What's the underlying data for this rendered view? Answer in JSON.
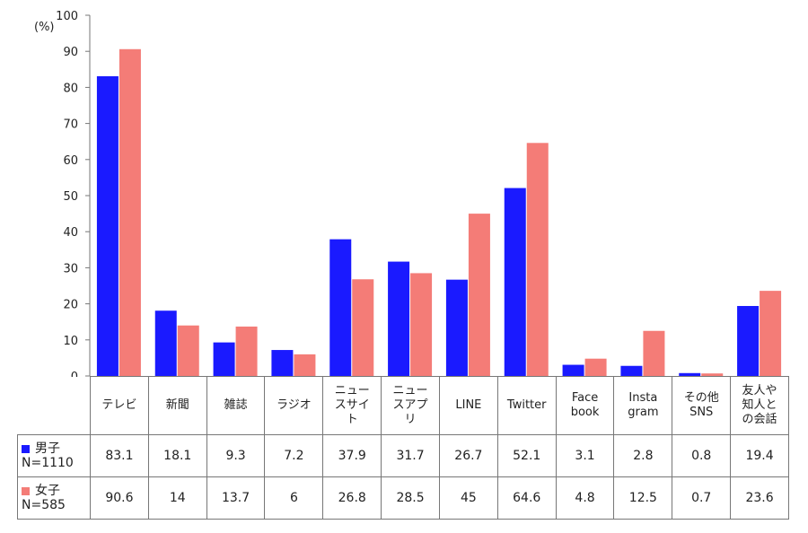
{
  "chart_data": {
    "type": "bar",
    "ylabel": "(%)",
    "ylim": [
      0,
      100
    ],
    "yticks": [
      0,
      10,
      20,
      30,
      40,
      50,
      60,
      70,
      80,
      90,
      100
    ],
    "grid": false,
    "categories": [
      "テレビ",
      "新聞",
      "雑誌",
      "ラジオ",
      "ニュー\nスサイ\nト",
      "ニュー\nスアプ\nリ",
      "LINE",
      "Twitter",
      "Face\nbook",
      "Insta\ngram",
      "その他\nSNS",
      "友人や\n知人と\nの会話"
    ],
    "series": [
      {
        "name": "男子",
        "n": "N=1110",
        "color": "#1a1aff",
        "values": [
          83.1,
          18.1,
          9.3,
          7.2,
          37.9,
          31.7,
          26.7,
          52.1,
          3.1,
          2.8,
          0.8,
          19.4
        ]
      },
      {
        "name": "女子",
        "n": "N=585",
        "color": "#f47c77",
        "values": [
          90.6,
          14,
          13.7,
          6,
          26.8,
          28.5,
          45,
          64.6,
          4.8,
          12.5,
          0.7,
          23.6
        ]
      }
    ],
    "data_table": {
      "rows": [
        [
          "83.1",
          "18.1",
          "9.3",
          "7.2",
          "37.9",
          "31.7",
          "26.7",
          "52.1",
          "3.1",
          "2.8",
          "0.8",
          "19.4"
        ],
        [
          "90.6",
          "14",
          "13.7",
          "6",
          "26.8",
          "28.5",
          "45",
          "64.6",
          "4.8",
          "12.5",
          "0.7",
          "23.6"
        ]
      ]
    }
  }
}
